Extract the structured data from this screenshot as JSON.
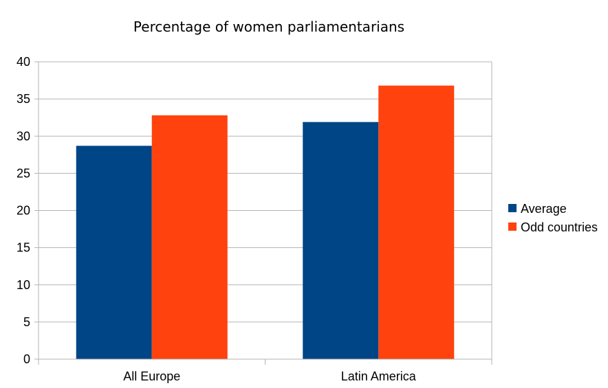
{
  "chart_data": {
    "type": "bar",
    "title": "Percentage of women parliamentarians",
    "xlabel": "",
    "ylabel": "",
    "categories": [
      "All Europe",
      "Latin America"
    ],
    "series": [
      {
        "name": "Average",
        "values": [
          28.7,
          31.9
        ],
        "color": "#004586"
      },
      {
        "name": "Odd countries",
        "values": [
          32.8,
          36.8
        ],
        "color": "#ff420e"
      }
    ],
    "ylim": [
      0,
      40
    ],
    "yticks": [
      0,
      5,
      10,
      15,
      20,
      25,
      30,
      35,
      40
    ],
    "grid": true,
    "legend_position": "right"
  }
}
